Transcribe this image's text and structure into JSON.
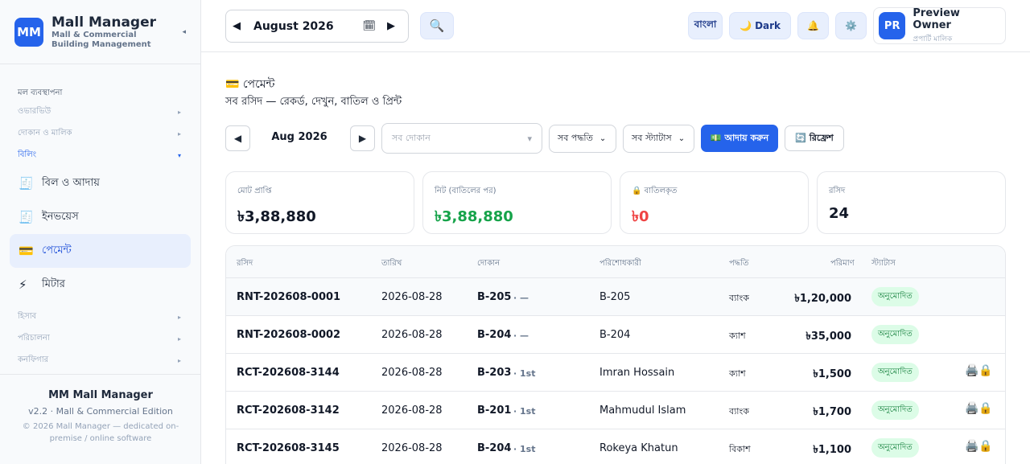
{
  "brand": {
    "logo": "MM",
    "title": "Mall Manager",
    "subtitle_line1": "Mall & Commercial",
    "subtitle_line2": "Building Management",
    "collapse": "◂"
  },
  "sidebar": {
    "section_head": "মল ব্যবস্থাপনা",
    "groups_top": [
      {
        "label": "ওভারভিউ",
        "arrow": "▸"
      },
      {
        "label": "দোকান ও মালিক",
        "arrow": "▸"
      },
      {
        "label": "বিলিং",
        "arrow": "▾"
      }
    ],
    "items": [
      {
        "label": "বিল ও আদায়",
        "icon": "🧾"
      },
      {
        "label": "ইনভয়েস",
        "icon": "🧾"
      },
      {
        "label": "পেমেন্ট",
        "icon": "💳"
      },
      {
        "label": "মিটার",
        "icon": "⚡"
      }
    ],
    "groups_bottom": [
      {
        "label": "হিসাব",
        "arrow": "▸"
      },
      {
        "label": "পরিচালনা",
        "arrow": "▸"
      },
      {
        "label": "কনফিগার",
        "arrow": "▸"
      }
    ],
    "footer": {
      "title": "MM Mall Manager",
      "version": "v2.2 · Mall & Commercial Edition",
      "copyright": "© 2026 Mall Manager — dedicated on-premise / online software"
    }
  },
  "topbar": {
    "month_prev": "◀",
    "month_value": "August  2026",
    "calendar_icon": "🗓",
    "month_next": "▶",
    "search_icon": "🔍",
    "lang_label": "বাংলা",
    "dark_label": "🌙 Dark",
    "bell_icon": "🔔",
    "settings_icon": "⚙️",
    "profile": {
      "initials": "PR",
      "name": "Preview Owner",
      "role": "প্রপার্টি মালিক"
    }
  },
  "page": {
    "title": "💳 পেমেন্ট",
    "subtitle": "সব রসিদ — রেকর্ড, দেখুন, বাতিল ও প্রিন্ট"
  },
  "filters": {
    "prev": "◀",
    "month": "Aug 2026",
    "next": "▶",
    "shop_placeholder": "সব দোকান",
    "shop_chev": "▾",
    "method": "সব পদ্ধতি",
    "status": "সব স্ট্যাটাস",
    "chev": "⌄",
    "collect_label": "💵 আদায় করুন",
    "refresh_label": "🔄 রিফ্রেশ"
  },
  "cards": [
    {
      "label": "মোট প্রাপ্তি",
      "value": "৳3,88,880",
      "tone": ""
    },
    {
      "label": "নিট (বাতিলের পর)",
      "value": "৳3,88,880",
      "tone": "green"
    },
    {
      "label": "🔒 বাতিলকৃত",
      "value": "৳0",
      "tone": "red"
    },
    {
      "label": "রসিদ",
      "value": "24",
      "tone": ""
    }
  ],
  "table": {
    "headers": [
      "রসিদ",
      "তারিখ",
      "দোকান",
      "পরিশোধকারী",
      "পদ্ধতি",
      "পরিমাণ",
      "স্ট্যাটাস"
    ],
    "rows": [
      {
        "receipt": "RNT-202608-0001",
        "date": "2026-08-28",
        "shop": "B-205",
        "floor": "· —",
        "payer": "B-205",
        "method": "ব্যাংক",
        "amount": "৳1,20,000",
        "status": "অনুমোদিত",
        "actions": ""
      },
      {
        "receipt": "RNT-202608-0002",
        "date": "2026-08-28",
        "shop": "B-204",
        "floor": "· —",
        "payer": "B-204",
        "method": "ক্যাশ",
        "amount": "৳35,000",
        "status": "অনুমোদিত",
        "actions": ""
      },
      {
        "receipt": "RCT-202608-3144",
        "date": "2026-08-28",
        "shop": "B-203",
        "floor": "· 1st",
        "payer": "Imran Hossain",
        "method": "ক্যাশ",
        "amount": "৳1,500",
        "status": "অনুমোদিত",
        "actions": "🖨️🔒"
      },
      {
        "receipt": "RCT-202608-3142",
        "date": "2026-08-28",
        "shop": "B-201",
        "floor": "· 1st",
        "payer": "Mahmudul Islam",
        "method": "ব্যাংক",
        "amount": "৳1,700",
        "status": "অনুমোদিত",
        "actions": "🖨️🔒"
      },
      {
        "receipt": "RCT-202608-3145",
        "date": "2026-08-28",
        "shop": "B-204",
        "floor": "· 1st",
        "payer": "Rokeya Khatun",
        "method": "বিকাশ",
        "amount": "৳1,100",
        "status": "অনুমোদিত",
        "actions": "🖨️🔒"
      }
    ]
  },
  "colors": {
    "accent": "#2563eb",
    "success": "#16a34a",
    "danger": "#ef4444"
  }
}
